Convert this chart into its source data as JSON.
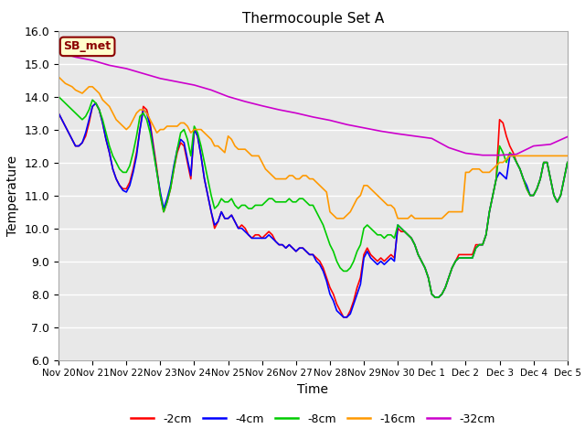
{
  "title": "Thermocouple Set A",
  "xlabel": "Time",
  "ylabel": "Temperature",
  "ylim": [
    6.0,
    16.0
  ],
  "yticks": [
    6.0,
    7.0,
    8.0,
    9.0,
    10.0,
    11.0,
    12.0,
    13.0,
    14.0,
    15.0,
    16.0
  ],
  "xtick_labels": [
    "Nov 20",
    "Nov 21",
    "Nov 22",
    "Nov 23",
    "Nov 24",
    "Nov 25",
    "Nov 26",
    "Nov 27",
    "Nov 28",
    "Nov 29",
    "Nov 30",
    "Dec 1",
    "Dec 2",
    "Dec 3",
    "Dec 4",
    "Dec 5"
  ],
  "plot_bg_color": "#e8e8e8",
  "fig_bg_color": "#ffffff",
  "legend_entries": [
    "-2cm",
    "-4cm",
    "-8cm",
    "-16cm",
    "-32cm"
  ],
  "legend_colors": [
    "#ff0000",
    "#0000ff",
    "#00cc00",
    "#ff9900",
    "#cc00cc"
  ],
  "annotation_text": "SB_met",
  "series": {
    "m2cm": {
      "color": "#ff0000",
      "label": "-2cm",
      "x": [
        0,
        0.1,
        0.2,
        0.3,
        0.4,
        0.5,
        0.6,
        0.7,
        0.8,
        0.9,
        1.0,
        1.1,
        1.2,
        1.3,
        1.4,
        1.5,
        1.6,
        1.7,
        1.8,
        1.9,
        2.0,
        2.1,
        2.2,
        2.3,
        2.4,
        2.5,
        2.6,
        2.7,
        2.8,
        2.9,
        3.0,
        3.1,
        3.2,
        3.3,
        3.4,
        3.5,
        3.6,
        3.7,
        3.8,
        3.9,
        4.0,
        4.1,
        4.2,
        4.3,
        4.4,
        4.5,
        4.6,
        4.7,
        4.8,
        4.9,
        5.0,
        5.1,
        5.2,
        5.3,
        5.4,
        5.5,
        5.6,
        5.7,
        5.8,
        5.9,
        6.0,
        6.1,
        6.2,
        6.3,
        6.4,
        6.5,
        6.6,
        6.7,
        6.8,
        6.9,
        7.0,
        7.1,
        7.2,
        7.3,
        7.4,
        7.5,
        7.6,
        7.7,
        7.8,
        7.9,
        8.0,
        8.1,
        8.2,
        8.3,
        8.4,
        8.5,
        8.6,
        8.7,
        8.8,
        8.9,
        9.0,
        9.1,
        9.2,
        9.3,
        9.4,
        9.5,
        9.6,
        9.7,
        9.8,
        9.9,
        10.0,
        10.1,
        10.2,
        10.3,
        10.4,
        10.5,
        10.6,
        10.7,
        10.8,
        10.9,
        11.0,
        11.1,
        11.2,
        11.3,
        11.4,
        11.5,
        11.6,
        11.7,
        11.8,
        11.9,
        12.0,
        12.1,
        12.2,
        12.3,
        12.4,
        12.5,
        12.6,
        12.7,
        12.8,
        12.9,
        13.0,
        13.1,
        13.2,
        13.3,
        13.4,
        13.5,
        13.6,
        13.7,
        13.8,
        13.9,
        14.0,
        14.1,
        14.2,
        14.3,
        14.4,
        14.5,
        14.6,
        14.7,
        14.8,
        14.9,
        15.0
      ],
      "y": [
        13.5,
        13.3,
        13.1,
        12.9,
        12.7,
        12.5,
        12.5,
        12.6,
        12.8,
        13.2,
        13.7,
        13.8,
        13.6,
        13.2,
        12.7,
        12.3,
        11.8,
        11.5,
        11.3,
        11.2,
        11.2,
        11.4,
        11.8,
        12.3,
        13.0,
        13.7,
        13.6,
        13.2,
        12.5,
        11.8,
        11.0,
        10.5,
        10.8,
        11.2,
        11.8,
        12.3,
        12.6,
        12.5,
        12.0,
        11.5,
        13.0,
        12.8,
        12.2,
        11.5,
        11.0,
        10.5,
        10.0,
        10.2,
        10.5,
        10.3,
        10.3,
        10.4,
        10.2,
        10.0,
        10.1,
        10.0,
        9.8,
        9.7,
        9.8,
        9.8,
        9.7,
        9.8,
        9.9,
        9.8,
        9.6,
        9.5,
        9.5,
        9.4,
        9.5,
        9.4,
        9.3,
        9.4,
        9.4,
        9.3,
        9.2,
        9.2,
        9.1,
        9.0,
        8.8,
        8.5,
        8.2,
        8.0,
        7.7,
        7.5,
        7.3,
        7.3,
        7.5,
        7.8,
        8.2,
        8.5,
        9.2,
        9.4,
        9.2,
        9.1,
        9.0,
        9.1,
        9.0,
        9.1,
        9.2,
        9.1,
        10.0,
        9.9,
        9.9,
        9.8,
        9.7,
        9.5,
        9.2,
        9.0,
        8.8,
        8.5,
        8.0,
        7.9,
        7.9,
        8.0,
        8.2,
        8.5,
        8.8,
        9.0,
        9.2,
        9.2,
        9.2,
        9.2,
        9.2,
        9.5,
        9.5,
        9.5,
        9.8,
        10.5,
        11.0,
        11.5,
        13.3,
        13.2,
        12.8,
        12.5,
        12.3,
        12.0,
        11.8,
        11.5,
        11.2,
        11.0,
        11.0,
        11.2,
        11.5,
        12.0,
        12.0,
        11.5,
        11.0,
        10.8,
        11.0,
        11.5,
        12.0
      ]
    },
    "m4cm": {
      "color": "#0000ff",
      "label": "-4cm",
      "x": [
        0,
        0.1,
        0.2,
        0.3,
        0.4,
        0.5,
        0.6,
        0.7,
        0.8,
        0.9,
        1.0,
        1.1,
        1.2,
        1.3,
        1.4,
        1.5,
        1.6,
        1.7,
        1.8,
        1.9,
        2.0,
        2.1,
        2.2,
        2.3,
        2.4,
        2.5,
        2.6,
        2.7,
        2.8,
        2.9,
        3.0,
        3.1,
        3.2,
        3.3,
        3.4,
        3.5,
        3.6,
        3.7,
        3.8,
        3.9,
        4.0,
        4.1,
        4.2,
        4.3,
        4.4,
        4.5,
        4.6,
        4.7,
        4.8,
        4.9,
        5.0,
        5.1,
        5.2,
        5.3,
        5.4,
        5.5,
        5.6,
        5.7,
        5.8,
        5.9,
        6.0,
        6.1,
        6.2,
        6.3,
        6.4,
        6.5,
        6.6,
        6.7,
        6.8,
        6.9,
        7.0,
        7.1,
        7.2,
        7.3,
        7.4,
        7.5,
        7.6,
        7.7,
        7.8,
        7.9,
        8.0,
        8.1,
        8.2,
        8.3,
        8.4,
        8.5,
        8.6,
        8.7,
        8.8,
        8.9,
        9.0,
        9.1,
        9.2,
        9.3,
        9.4,
        9.5,
        9.6,
        9.7,
        9.8,
        9.9,
        10.0,
        10.1,
        10.2,
        10.3,
        10.4,
        10.5,
        10.6,
        10.7,
        10.8,
        10.9,
        11.0,
        11.1,
        11.2,
        11.3,
        11.4,
        11.5,
        11.6,
        11.7,
        11.8,
        11.9,
        12.0,
        12.1,
        12.2,
        12.3,
        12.4,
        12.5,
        12.6,
        12.7,
        12.8,
        12.9,
        13.0,
        13.1,
        13.2,
        13.3,
        13.4,
        13.5,
        13.6,
        13.7,
        13.8,
        13.9,
        14.0,
        14.1,
        14.2,
        14.3,
        14.4,
        14.5,
        14.6,
        14.7,
        14.8,
        14.9,
        15.0
      ],
      "y": [
        13.5,
        13.3,
        13.1,
        12.9,
        12.7,
        12.5,
        12.5,
        12.6,
        12.9,
        13.3,
        13.7,
        13.8,
        13.6,
        13.2,
        12.7,
        12.3,
        11.8,
        11.5,
        11.3,
        11.15,
        11.1,
        11.3,
        11.7,
        12.2,
        13.0,
        13.6,
        13.5,
        13.1,
        12.4,
        11.7,
        11.1,
        10.6,
        10.9,
        11.3,
        11.9,
        12.4,
        12.7,
        12.6,
        12.1,
        11.6,
        13.0,
        12.8,
        12.2,
        11.5,
        11.0,
        10.5,
        10.1,
        10.2,
        10.5,
        10.3,
        10.3,
        10.4,
        10.2,
        10.0,
        10.0,
        9.9,
        9.8,
        9.7,
        9.7,
        9.7,
        9.7,
        9.7,
        9.8,
        9.7,
        9.6,
        9.5,
        9.5,
        9.4,
        9.5,
        9.4,
        9.3,
        9.4,
        9.4,
        9.3,
        9.2,
        9.2,
        9.0,
        8.9,
        8.7,
        8.4,
        8.0,
        7.8,
        7.5,
        7.4,
        7.3,
        7.3,
        7.4,
        7.7,
        8.0,
        8.3,
        9.1,
        9.3,
        9.1,
        9.0,
        8.9,
        9.0,
        8.9,
        9.0,
        9.1,
        9.0,
        10.1,
        10.0,
        9.9,
        9.8,
        9.7,
        9.5,
        9.2,
        9.0,
        8.8,
        8.5,
        8.0,
        7.9,
        7.9,
        8.0,
        8.2,
        8.5,
        8.8,
        9.0,
        9.1,
        9.1,
        9.1,
        9.1,
        9.1,
        9.4,
        9.5,
        9.5,
        9.8,
        10.5,
        11.0,
        11.5,
        11.7,
        11.6,
        11.5,
        12.2,
        12.2,
        12.0,
        11.8,
        11.5,
        11.3,
        11.0,
        11.0,
        11.2,
        11.5,
        12.0,
        12.0,
        11.5,
        11.0,
        10.8,
        11.0,
        11.5,
        12.0
      ]
    },
    "m8cm": {
      "color": "#00cc00",
      "label": "-8cm",
      "x": [
        0,
        0.1,
        0.2,
        0.3,
        0.4,
        0.5,
        0.6,
        0.7,
        0.8,
        0.9,
        1.0,
        1.1,
        1.2,
        1.3,
        1.4,
        1.5,
        1.6,
        1.7,
        1.8,
        1.9,
        2.0,
        2.1,
        2.2,
        2.3,
        2.4,
        2.5,
        2.6,
        2.7,
        2.8,
        2.9,
        3.0,
        3.1,
        3.2,
        3.3,
        3.4,
        3.5,
        3.6,
        3.7,
        3.8,
        3.9,
        4.0,
        4.1,
        4.2,
        4.3,
        4.4,
        4.5,
        4.6,
        4.7,
        4.8,
        4.9,
        5.0,
        5.1,
        5.2,
        5.3,
        5.4,
        5.5,
        5.6,
        5.7,
        5.8,
        5.9,
        6.0,
        6.1,
        6.2,
        6.3,
        6.4,
        6.5,
        6.6,
        6.7,
        6.8,
        6.9,
        7.0,
        7.1,
        7.2,
        7.3,
        7.4,
        7.5,
        7.6,
        7.7,
        7.8,
        7.9,
        8.0,
        8.1,
        8.2,
        8.3,
        8.4,
        8.5,
        8.6,
        8.7,
        8.8,
        8.9,
        9.0,
        9.1,
        9.2,
        9.3,
        9.4,
        9.5,
        9.6,
        9.7,
        9.8,
        9.9,
        10.0,
        10.1,
        10.2,
        10.3,
        10.4,
        10.5,
        10.6,
        10.7,
        10.8,
        10.9,
        11.0,
        11.1,
        11.2,
        11.3,
        11.4,
        11.5,
        11.6,
        11.7,
        11.8,
        11.9,
        12.0,
        12.1,
        12.2,
        12.3,
        12.4,
        12.5,
        12.6,
        12.7,
        12.8,
        12.9,
        13.0,
        13.1,
        13.2,
        13.3,
        13.4,
        13.5,
        13.6,
        13.7,
        13.8,
        13.9,
        14.0,
        14.1,
        14.2,
        14.3,
        14.4,
        14.5,
        14.6,
        14.7,
        14.8,
        14.9,
        15.0
      ],
      "y": [
        14.0,
        13.9,
        13.8,
        13.7,
        13.6,
        13.5,
        13.4,
        13.3,
        13.4,
        13.6,
        13.9,
        13.8,
        13.6,
        13.3,
        12.9,
        12.5,
        12.2,
        12.0,
        11.8,
        11.7,
        11.7,
        11.9,
        12.3,
        12.8,
        13.4,
        13.5,
        13.3,
        12.9,
        12.3,
        11.7,
        11.0,
        10.5,
        10.8,
        11.2,
        11.8,
        12.4,
        12.9,
        13.0,
        12.7,
        12.2,
        13.1,
        12.9,
        12.5,
        12.0,
        11.5,
        11.0,
        10.6,
        10.7,
        10.9,
        10.8,
        10.8,
        10.9,
        10.7,
        10.6,
        10.7,
        10.7,
        10.6,
        10.6,
        10.7,
        10.7,
        10.7,
        10.8,
        10.9,
        10.9,
        10.8,
        10.8,
        10.8,
        10.8,
        10.9,
        10.8,
        10.8,
        10.9,
        10.9,
        10.8,
        10.7,
        10.7,
        10.5,
        10.3,
        10.1,
        9.8,
        9.5,
        9.3,
        9.0,
        8.8,
        8.7,
        8.7,
        8.8,
        9.0,
        9.3,
        9.5,
        10.0,
        10.1,
        10.0,
        9.9,
        9.8,
        9.8,
        9.7,
        9.8,
        9.8,
        9.7,
        10.1,
        10.0,
        9.9,
        9.8,
        9.7,
        9.5,
        9.2,
        9.0,
        8.8,
        8.5,
        8.0,
        7.9,
        7.9,
        8.0,
        8.2,
        8.5,
        8.8,
        9.0,
        9.1,
        9.1,
        9.1,
        9.1,
        9.1,
        9.4,
        9.5,
        9.5,
        9.8,
        10.5,
        11.0,
        11.5,
        12.5,
        12.3,
        12.0,
        12.3,
        12.2,
        12.0,
        11.8,
        11.5,
        11.2,
        11.0,
        11.0,
        11.2,
        11.5,
        12.0,
        12.0,
        11.5,
        11.0,
        10.8,
        11.0,
        11.5,
        12.0
      ]
    },
    "m16cm": {
      "color": "#ff9900",
      "label": "-16cm",
      "x": [
        0,
        0.1,
        0.2,
        0.3,
        0.4,
        0.5,
        0.6,
        0.7,
        0.8,
        0.9,
        1.0,
        1.1,
        1.2,
        1.3,
        1.4,
        1.5,
        1.6,
        1.7,
        1.8,
        1.9,
        2.0,
        2.1,
        2.2,
        2.3,
        2.4,
        2.5,
        2.6,
        2.7,
        2.8,
        2.9,
        3.0,
        3.1,
        3.2,
        3.3,
        3.4,
        3.5,
        3.6,
        3.7,
        3.8,
        3.9,
        4.0,
        4.1,
        4.2,
        4.3,
        4.4,
        4.5,
        4.6,
        4.7,
        4.8,
        4.9,
        5.0,
        5.1,
        5.2,
        5.3,
        5.4,
        5.5,
        5.6,
        5.7,
        5.8,
        5.9,
        6.0,
        6.1,
        6.2,
        6.3,
        6.4,
        6.5,
        6.6,
        6.7,
        6.8,
        6.9,
        7.0,
        7.1,
        7.2,
        7.3,
        7.4,
        7.5,
        7.6,
        7.7,
        7.8,
        7.9,
        8.0,
        8.1,
        8.2,
        8.3,
        8.4,
        8.5,
        8.6,
        8.7,
        8.8,
        8.9,
        9.0,
        9.1,
        9.2,
        9.3,
        9.4,
        9.5,
        9.6,
        9.7,
        9.8,
        9.9,
        10.0,
        10.1,
        10.2,
        10.3,
        10.4,
        10.5,
        10.6,
        10.7,
        10.8,
        10.9,
        11.0,
        11.1,
        11.2,
        11.3,
        11.4,
        11.5,
        11.6,
        11.7,
        11.8,
        11.9,
        12.0,
        12.1,
        12.2,
        12.3,
        12.4,
        12.5,
        12.6,
        12.7,
        12.8,
        12.9,
        13.0,
        13.1,
        13.2,
        13.3,
        13.4,
        13.5,
        13.6,
        13.7,
        13.8,
        13.9,
        14.0,
        14.1,
        14.2,
        14.3,
        14.4,
        14.5,
        14.6,
        14.7,
        14.8,
        14.9,
        15.0
      ],
      "y": [
        14.6,
        14.5,
        14.4,
        14.35,
        14.3,
        14.2,
        14.15,
        14.1,
        14.2,
        14.3,
        14.3,
        14.2,
        14.1,
        13.9,
        13.8,
        13.7,
        13.5,
        13.3,
        13.2,
        13.1,
        13.0,
        13.1,
        13.3,
        13.5,
        13.6,
        13.6,
        13.5,
        13.3,
        13.1,
        12.9,
        13.0,
        13.0,
        13.1,
        13.1,
        13.1,
        13.1,
        13.2,
        13.2,
        13.1,
        12.9,
        13.0,
        13.0,
        13.0,
        12.9,
        12.8,
        12.7,
        12.5,
        12.5,
        12.4,
        12.3,
        12.8,
        12.7,
        12.5,
        12.4,
        12.4,
        12.4,
        12.3,
        12.2,
        12.2,
        12.2,
        12.0,
        11.8,
        11.7,
        11.6,
        11.5,
        11.5,
        11.5,
        11.5,
        11.6,
        11.6,
        11.5,
        11.5,
        11.6,
        11.6,
        11.5,
        11.5,
        11.4,
        11.3,
        11.2,
        11.1,
        10.5,
        10.4,
        10.3,
        10.3,
        10.3,
        10.4,
        10.5,
        10.7,
        10.9,
        11.0,
        11.3,
        11.3,
        11.2,
        11.1,
        11.0,
        10.9,
        10.8,
        10.7,
        10.7,
        10.6,
        10.3,
        10.3,
        10.3,
        10.3,
        10.4,
        10.3,
        10.3,
        10.3,
        10.3,
        10.3,
        10.3,
        10.3,
        10.3,
        10.3,
        10.4,
        10.5,
        10.5,
        10.5,
        10.5,
        10.5,
        11.7,
        11.7,
        11.8,
        11.8,
        11.8,
        11.7,
        11.7,
        11.7,
        11.8,
        11.9,
        12.0,
        12.0,
        12.1,
        12.2,
        12.2,
        12.2,
        12.2,
        12.2,
        12.2,
        12.2,
        12.2,
        12.2,
        12.2,
        12.2,
        12.2,
        12.2,
        12.2,
        12.2,
        12.2,
        12.2,
        12.2
      ]
    },
    "m32cm": {
      "color": "#cc00cc",
      "label": "-32cm",
      "x": [
        0,
        0.5,
        1.0,
        1.5,
        2.0,
        2.5,
        3.0,
        3.5,
        4.0,
        4.5,
        5.0,
        5.5,
        6.0,
        6.5,
        7.0,
        7.5,
        8.0,
        8.5,
        9.0,
        9.5,
        10.0,
        10.5,
        11.0,
        11.5,
        12.0,
        12.5,
        13.0,
        13.5,
        14.0,
        14.5,
        15.0
      ],
      "y": [
        15.35,
        15.2,
        15.1,
        14.95,
        14.85,
        14.7,
        14.55,
        14.45,
        14.35,
        14.2,
        14.0,
        13.85,
        13.72,
        13.6,
        13.5,
        13.38,
        13.28,
        13.15,
        13.05,
        12.95,
        12.87,
        12.8,
        12.73,
        12.45,
        12.28,
        12.22,
        12.22,
        12.25,
        12.5,
        12.55,
        12.78
      ]
    }
  }
}
